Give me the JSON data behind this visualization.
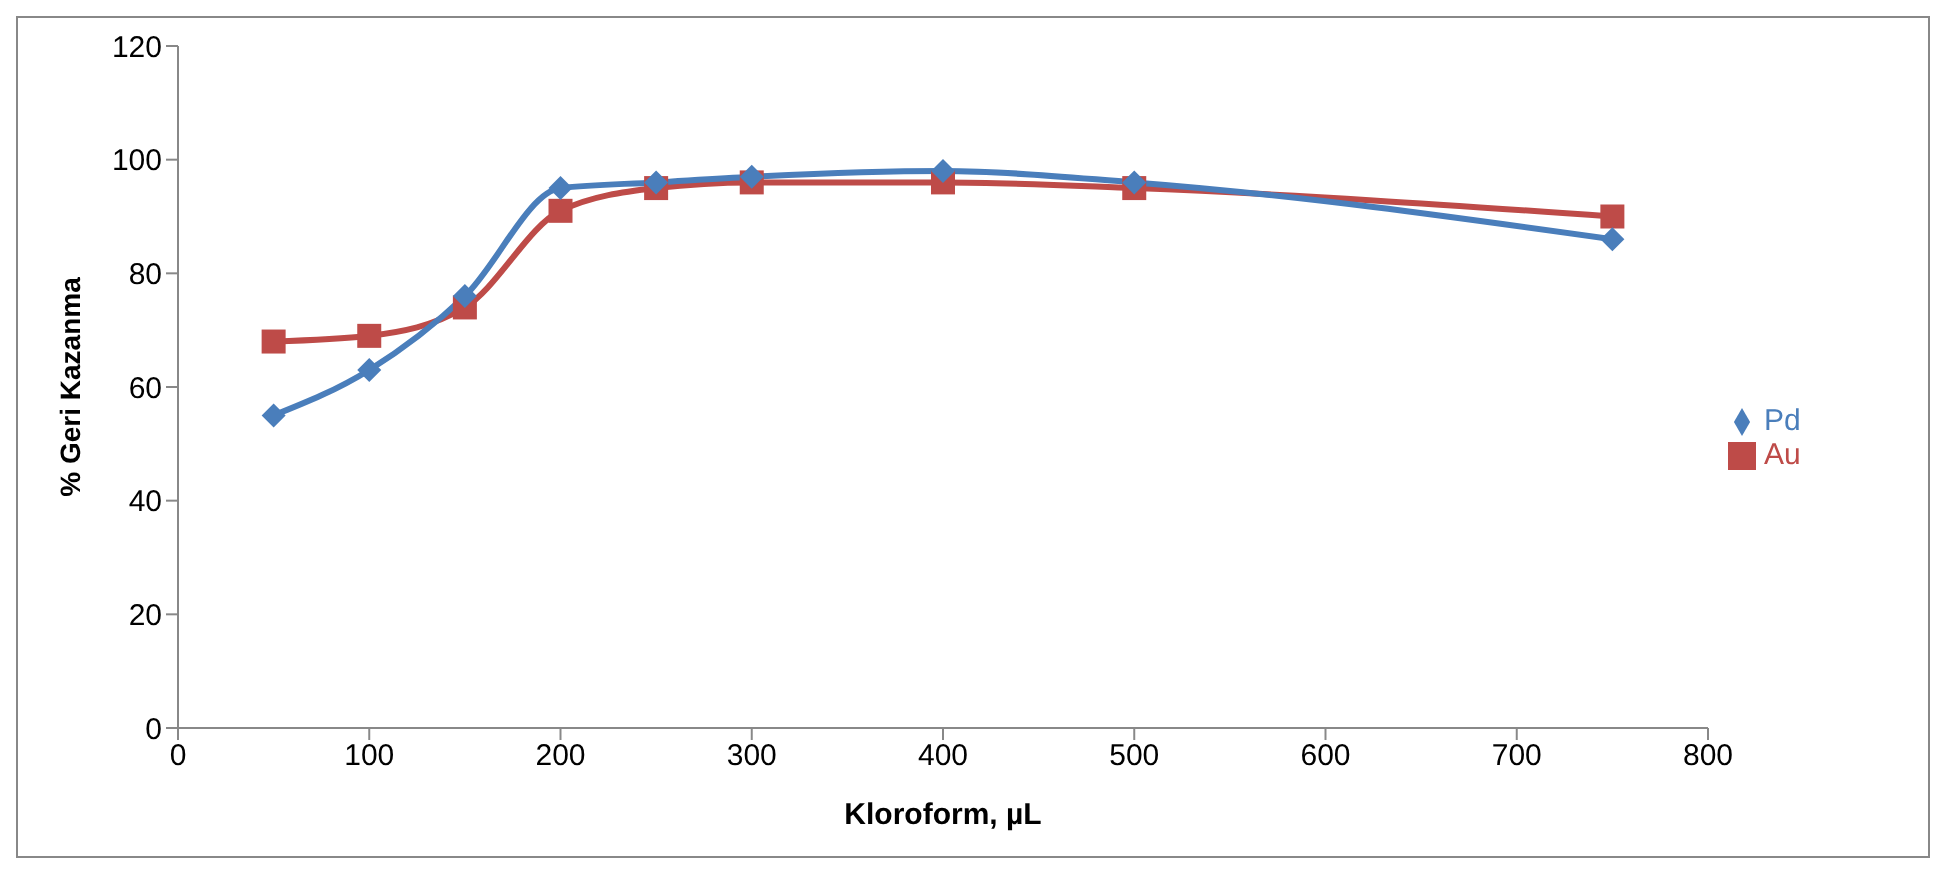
{
  "chart_data": {
    "type": "line",
    "xlabel": "Kloroform, µL",
    "ylabel": "% Geri Kazanma",
    "x": [
      50,
      100,
      150,
      200,
      250,
      300,
      400,
      500,
      750
    ],
    "series": [
      {
        "name": "Pd",
        "color": "#4a7ebb",
        "marker": "diamond",
        "values": [
          55,
          63,
          76,
          95,
          96,
          97,
          98,
          96,
          86
        ]
      },
      {
        "name": "Au",
        "color": "#be4b48",
        "marker": "square",
        "values": [
          68,
          69,
          74,
          91,
          95,
          96,
          96,
          95,
          90
        ]
      }
    ],
    "xlim": [
      0,
      800
    ],
    "xticks": [
      0,
      100,
      200,
      300,
      400,
      500,
      600,
      700,
      800
    ],
    "ylim": [
      0,
      120
    ],
    "yticks": [
      0,
      20,
      40,
      60,
      80,
      100,
      120
    ],
    "grid": false,
    "legend": "right",
    "line_style": "solid"
  }
}
